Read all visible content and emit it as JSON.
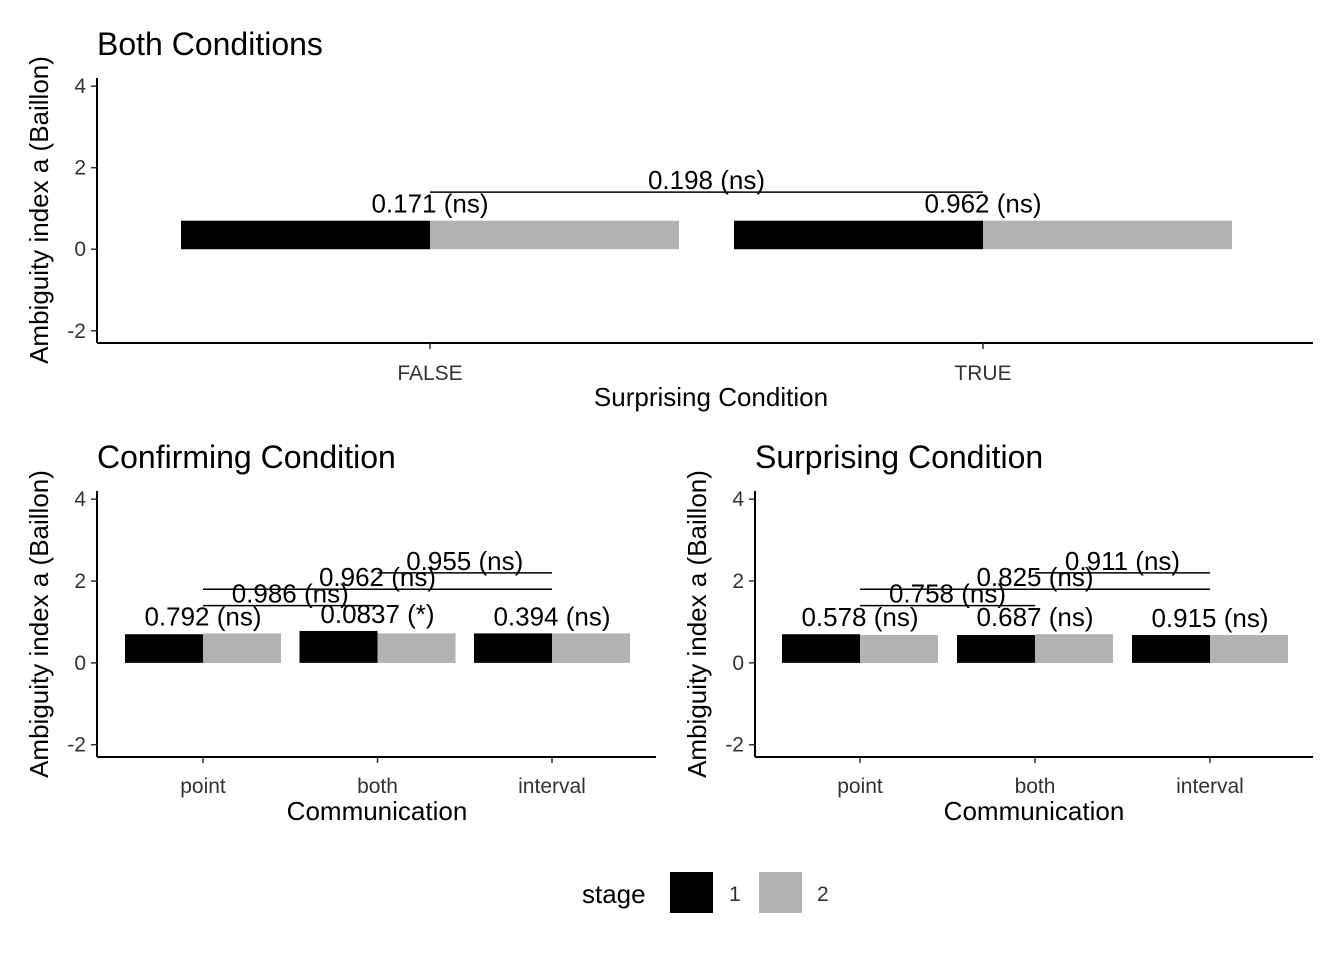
{
  "colors": {
    "stage1": "#000000",
    "stage2": "#b2b2b2"
  },
  "legend": {
    "title": "stage",
    "items": [
      {
        "label": "1",
        "color": "#000000"
      },
      {
        "label": "2",
        "color": "#b2b2b2"
      }
    ],
    "placement": "bottom"
  },
  "chart_data": [
    {
      "type": "bar",
      "title": "Both Conditions",
      "xlabel": "Surprising Condition",
      "ylabel": "Ambiguity index a (Baillon)",
      "categories": [
        "FALSE",
        "TRUE"
      ],
      "ylim": [
        -2.3,
        4.2
      ],
      "yticks": [
        -2,
        0,
        2,
        4
      ],
      "series": [
        {
          "name": "1",
          "values": [
            0.7,
            0.7
          ]
        },
        {
          "name": "2",
          "values": [
            0.7,
            0.7
          ]
        }
      ],
      "within_labels": [
        "0.171 (ns)",
        "0.962 (ns)"
      ],
      "brackets": [
        {
          "from": 0,
          "to": 1,
          "y": 1.4,
          "label": "0.198 (ns)"
        }
      ]
    },
    {
      "type": "bar",
      "title": "Confirming Condition",
      "xlabel": "Communication",
      "ylabel": "Ambiguity index a (Baillon)",
      "categories": [
        "point",
        "both",
        "interval"
      ],
      "ylim": [
        -2.3,
        4.2
      ],
      "yticks": [
        -2,
        0,
        2,
        4
      ],
      "series": [
        {
          "name": "1",
          "values": [
            0.7,
            0.78,
            0.72
          ]
        },
        {
          "name": "2",
          "values": [
            0.72,
            0.72,
            0.72
          ]
        }
      ],
      "within_labels": [
        "0.792 (ns)",
        "0.0837 (*)",
        "0.394 (ns)"
      ],
      "brackets": [
        {
          "from": 0,
          "to": 1,
          "y": 1.4,
          "label": "0.986 (ns)"
        },
        {
          "from": 0,
          "to": 2,
          "y": 1.8,
          "label": "0.962 (ns)"
        },
        {
          "from": 1,
          "to": 2,
          "y": 2.2,
          "label": "0.955 (ns)"
        }
      ]
    },
    {
      "type": "bar",
      "title": "Surprising Condition",
      "xlabel": "Communication",
      "ylabel": "Ambiguity index a (Baillon)",
      "categories": [
        "point",
        "both",
        "interval"
      ],
      "ylim": [
        -2.3,
        4.2
      ],
      "yticks": [
        -2,
        0,
        2,
        4
      ],
      "series": [
        {
          "name": "1",
          "values": [
            0.7,
            0.68,
            0.68
          ]
        },
        {
          "name": "2",
          "values": [
            0.68,
            0.7,
            0.68
          ]
        }
      ],
      "within_labels": [
        "0.578 (ns)",
        "0.687 (ns)",
        "0.915 (ns)"
      ],
      "brackets": [
        {
          "from": 0,
          "to": 1,
          "y": 1.4,
          "label": "0.758 (ns)"
        },
        {
          "from": 0,
          "to": 2,
          "y": 1.8,
          "label": "0.825 (ns)"
        },
        {
          "from": 1,
          "to": 2,
          "y": 2.2,
          "label": "0.911 (ns)"
        }
      ]
    }
  ]
}
